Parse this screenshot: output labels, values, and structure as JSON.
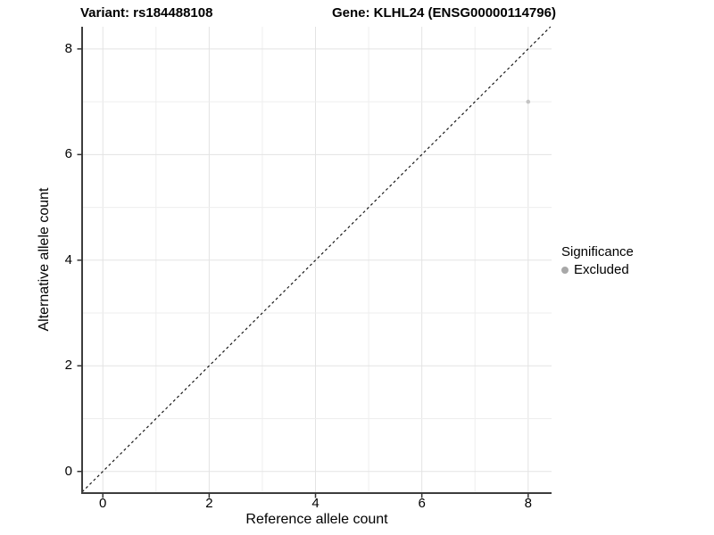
{
  "chart_data": {
    "type": "scatter",
    "title_left": "Variant: rs184488108",
    "title_right": "Gene: KLHL24 (ENSG00000114796)",
    "xlabel": "Reference allele count",
    "ylabel": "Alternative allele count",
    "xlim": [
      -0.39,
      8.44
    ],
    "ylim": [
      -0.41,
      8.42
    ],
    "x_ticks": [
      0,
      2,
      4,
      6,
      8
    ],
    "y_ticks": [
      0,
      2,
      4,
      6,
      8
    ],
    "grid_interval": 1,
    "grid": true,
    "points": [
      {
        "x": 8,
        "y": 7,
        "series": "Excluded"
      }
    ],
    "reference_line": {
      "type": "identity",
      "slope": 1,
      "intercept": 0,
      "style": "dashed"
    },
    "legend": {
      "title": "Significance",
      "position": "right",
      "items": [
        {
          "label": "Excluded",
          "color": "#bdbdbd"
        }
      ]
    },
    "colors": {
      "point": "#c4c4c4",
      "legend_dot": "#a8a8a8",
      "grid_major": "#e3e3e3",
      "grid_minor": "#eeeeee",
      "axis_line": "#3d3d3d",
      "tick": "#333333",
      "reference_line": "#1a1a1a",
      "text": "#000000"
    }
  }
}
